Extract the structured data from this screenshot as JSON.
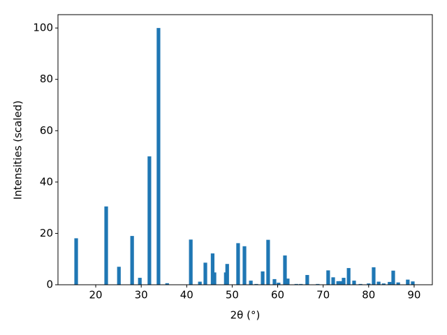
{
  "chart_data": {
    "type": "bar",
    "x_label": "2θ (°)",
    "y_label": "Intensities (scaled)",
    "color": "#1f77b4",
    "x": [
      15.7,
      22.3,
      25.1,
      28.0,
      29.7,
      31.8,
      33.8,
      35.7,
      40.9,
      42.9,
      44.1,
      45.7,
      46.1,
      48.6,
      48.9,
      51.3,
      52.7,
      54.1,
      55.3,
      56.7,
      57.9,
      59.3,
      60.2,
      61.6,
      62.2,
      64.1,
      65.1,
      66.5,
      68.8,
      71.1,
      72.2,
      73.3,
      73.9,
      74.5,
      75.6,
      76.8,
      78.2,
      80.0,
      81.1,
      82.2,
      83.3,
      84.6,
      85.4,
      86.5,
      88.6,
      89.7
    ],
    "values": [
      18.1,
      30.5,
      7,
      19,
      2.7,
      50,
      100,
      0.6,
      17.6,
      1.2,
      8.6,
      12.2,
      4.8,
      4.8,
      8.1,
      16.2,
      15,
      1.6,
      0.3,
      5.2,
      17.5,
      2.2,
      0.8,
      11.4,
      2.4,
      0.3,
      0.3,
      3.8,
      0.3,
      5.6,
      2.9,
      1.4,
      1.4,
      2.7,
      6.5,
      1.6,
      0.3,
      0.5,
      6.8,
      1.2,
      0.5,
      1.1,
      5.5,
      0.9,
      2,
      1.3
    ],
    "xlim": [
      11.7,
      94.0
    ],
    "ylim": [
      0,
      105.2
    ],
    "xticks": [
      20,
      30,
      40,
      50,
      60,
      70,
      80,
      90
    ],
    "yticks": [
      0,
      20,
      40,
      60,
      80,
      100
    ]
  }
}
